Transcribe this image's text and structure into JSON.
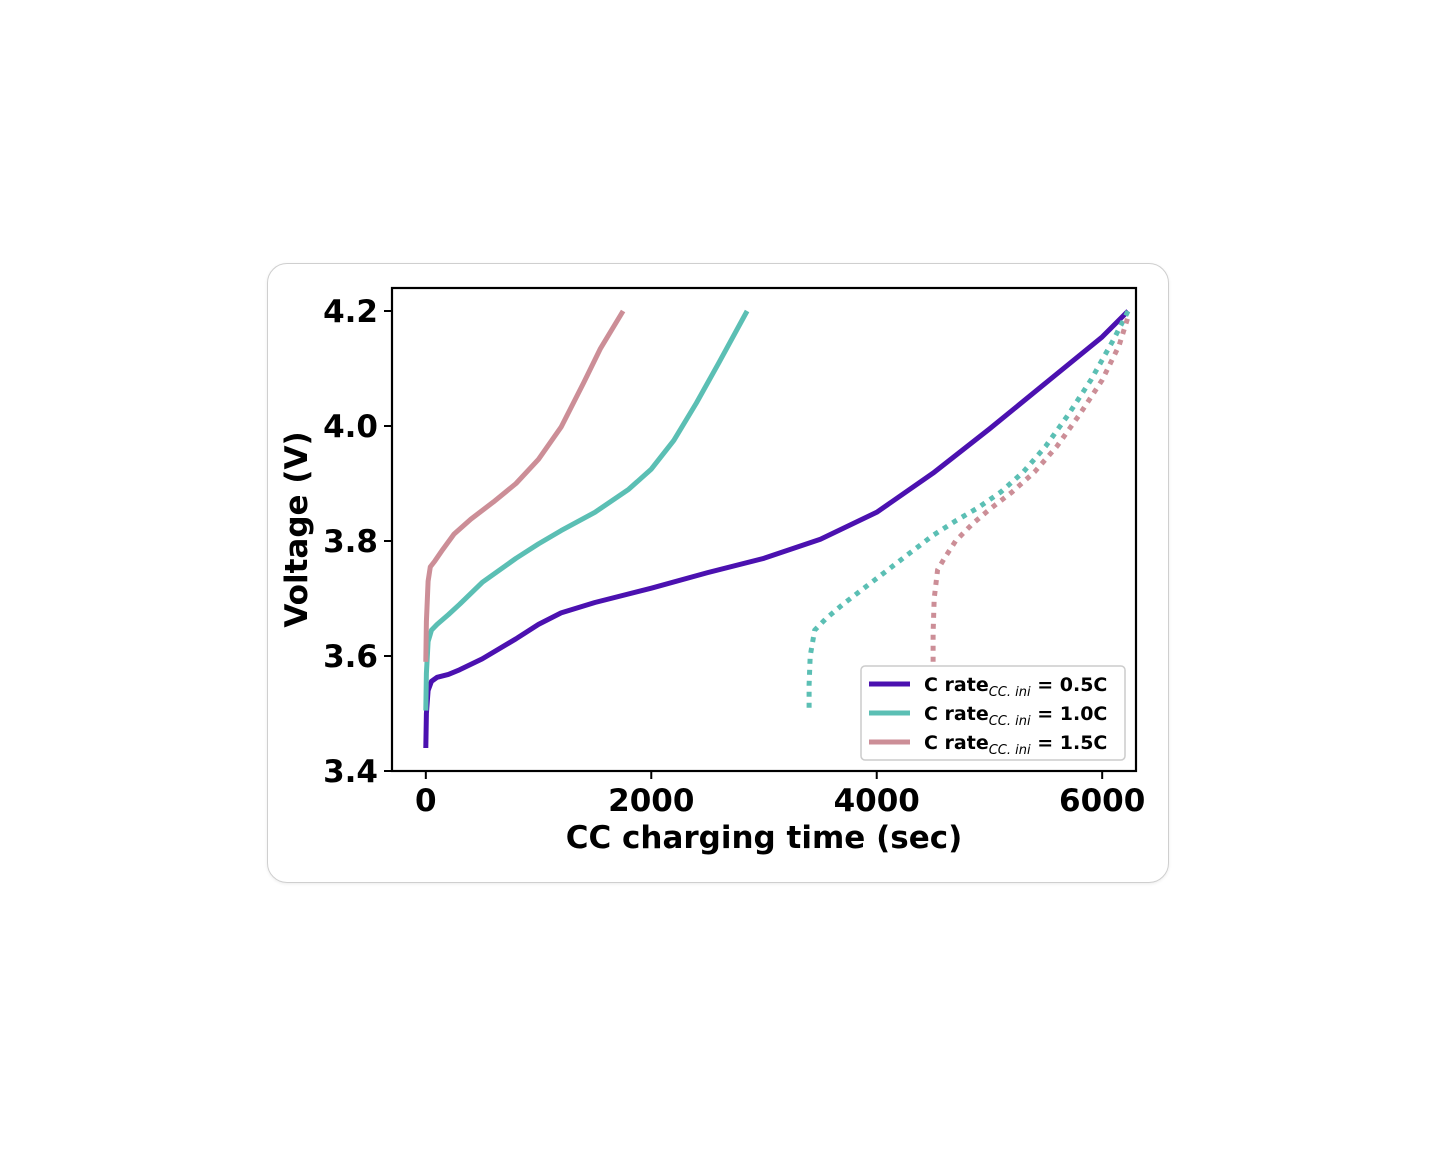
{
  "chart_data": {
    "type": "line",
    "xlabel": "CC charging time (sec)",
    "ylabel": "Voltage (V)",
    "xlim": [
      -300,
      6300
    ],
    "ylim": [
      3.4,
      4.24
    ],
    "xticks": [
      0,
      2000,
      4000,
      6000
    ],
    "xtick_labels": [
      "0",
      "2000",
      "4000",
      "6000"
    ],
    "yticks": [
      3.4,
      3.6,
      3.8,
      4.0,
      4.2
    ],
    "ytick_labels": [
      "3.4",
      "3.6",
      "3.8",
      "4.0",
      "4.2"
    ],
    "grid": false,
    "legend_position": "lower-right",
    "series": [
      {
        "legend_main": "C rate",
        "legend_sub": "CC. ini",
        "legend_value": "=  0.5C",
        "color": "#4b11b0",
        "style": "solid",
        "x": [
          0,
          5,
          20,
          50,
          100,
          200,
          300,
          500,
          800,
          1000,
          1200,
          1500,
          2000,
          2500,
          3000,
          3500,
          4000,
          4500,
          5000,
          5500,
          6000,
          6230
        ],
        "y": [
          3.44,
          3.5,
          3.54,
          3.556,
          3.563,
          3.568,
          3.576,
          3.595,
          3.63,
          3.655,
          3.675,
          3.693,
          3.718,
          3.745,
          3.77,
          3.803,
          3.85,
          3.918,
          3.995,
          4.075,
          4.155,
          4.2
        ]
      },
      {
        "legend_main": "C rate",
        "legend_sub": "CC. ini",
        "legend_value": "=  1.0C",
        "color": "#5bbfb4",
        "style": "solid",
        "x": [
          0,
          5,
          20,
          50,
          100,
          200,
          300,
          500,
          800,
          1000,
          1200,
          1500,
          1800,
          2000,
          2200,
          2400,
          2600,
          2850
        ],
        "y": [
          3.505,
          3.57,
          3.625,
          3.645,
          3.655,
          3.672,
          3.69,
          3.728,
          3.77,
          3.795,
          3.818,
          3.85,
          3.89,
          3.925,
          3.975,
          4.04,
          4.11,
          4.2
        ]
      },
      {
        "legend_main": "C rate",
        "legend_sub": "CC. ini",
        "legend_value": "=  1.5C",
        "color": "#cc8e97",
        "style": "solid",
        "x": [
          0,
          5,
          20,
          40,
          80,
          150,
          250,
          400,
          600,
          800,
          1000,
          1200,
          1400,
          1550,
          1750
        ],
        "y": [
          3.59,
          3.66,
          3.73,
          3.755,
          3.765,
          3.785,
          3.812,
          3.838,
          3.868,
          3.9,
          3.942,
          3.998,
          4.075,
          4.135,
          4.2
        ]
      },
      {
        "color": "#5bbfb4",
        "style": "dotted",
        "x": [
          3400,
          3400,
          3410,
          3450,
          3550,
          3700,
          3900,
          4100,
          4300,
          4500,
          4700,
          4900,
          5100,
          5300,
          5500,
          5700,
          5900,
          6100,
          6230
        ],
        "y": [
          3.51,
          3.55,
          3.6,
          3.645,
          3.665,
          3.69,
          3.72,
          3.75,
          3.78,
          3.81,
          3.835,
          3.858,
          3.885,
          3.92,
          3.965,
          4.02,
          4.08,
          4.15,
          4.2
        ]
      },
      {
        "color": "#cc8e97",
        "style": "dotted",
        "x": [
          4500,
          4500,
          4510,
          4540,
          4600,
          4700,
          4850,
          5000,
          5200,
          5400,
          5600,
          5800,
          6000,
          6150,
          6230
        ],
        "y": [
          3.59,
          3.64,
          3.7,
          3.75,
          3.77,
          3.8,
          3.83,
          3.855,
          3.885,
          3.92,
          3.965,
          4.02,
          4.08,
          4.14,
          4.19
        ]
      }
    ]
  }
}
